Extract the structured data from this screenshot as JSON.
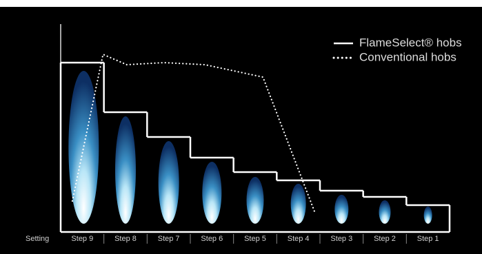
{
  "chart_data": {
    "type": "step",
    "x_label": "Setting",
    "categories": [
      "Step 9",
      "Step 8",
      "Step 7",
      "Step 6",
      "Step 5",
      "Step 4",
      "Step 3",
      "Step 2",
      "Step 1"
    ],
    "ylim": [
      0,
      100
    ],
    "xlim": [
      0,
      9
    ],
    "series": [
      {
        "name": "FlameSelect® hobs",
        "color": "#ffffff",
        "style": "solid",
        "values": [
          82,
          58,
          46,
          36,
          29,
          25,
          20,
          17,
          13
        ]
      },
      {
        "name": "Conventional hobs",
        "color": "#ffffff",
        "style": "dotted",
        "x": [
          0.27,
          0.98,
          1.53,
          2.39,
          3.34,
          4.68,
          5.89
        ],
        "values": [
          15,
          86,
          81,
          82,
          81,
          75,
          9
        ]
      }
    ]
  }
}
